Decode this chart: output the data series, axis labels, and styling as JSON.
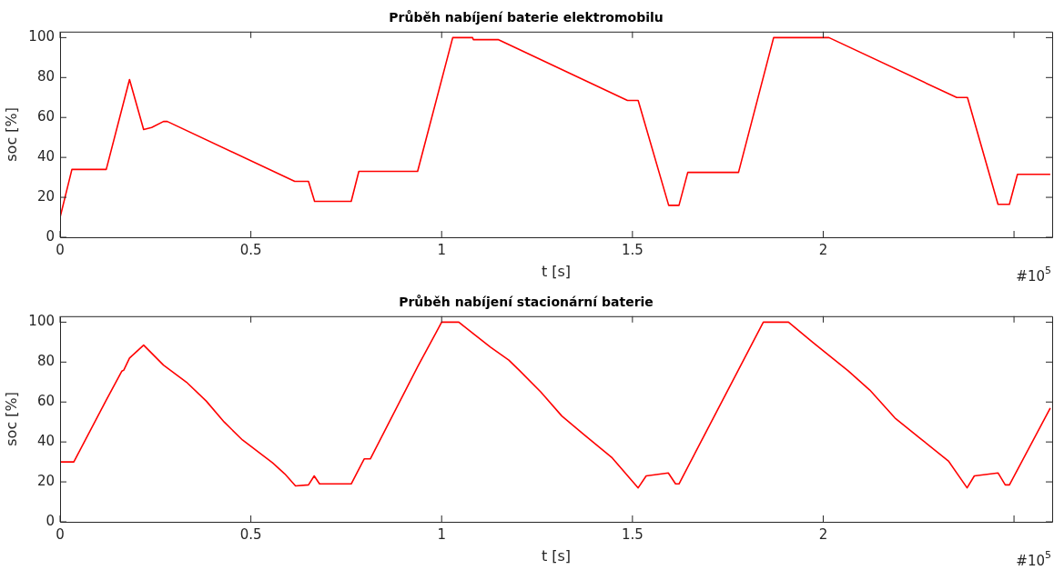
{
  "chart_data": [
    {
      "type": "line",
      "title": "Průběh nabíjení baterie elektromobilu",
      "xlabel": "t [s]",
      "ylabel": "soc [%]",
      "annotations": [
        "#10$^{5}$"
      ],
      "x": [
        0,
        0.031,
        0.121,
        0.182,
        0.219,
        0.24,
        0.271,
        0.281,
        0.615,
        0.651,
        0.667,
        0.763,
        0.783,
        0.937,
        1.029,
        1.081,
        1.083,
        1.148,
        1.487,
        1.515,
        1.595,
        1.622,
        1.645,
        1.778,
        1.87,
        2.015,
        2.35,
        2.378,
        2.458,
        2.488,
        2.509,
        2.595
      ],
      "series": [
        {
          "color": "#ff0000",
          "values": [
            10,
            34,
            34,
            79,
            54,
            55,
            58,
            58,
            28,
            28,
            18,
            18,
            33,
            33,
            100,
            100,
            99,
            99,
            68.5,
            68.5,
            16,
            16,
            32.5,
            32.5,
            100,
            100,
            70,
            70,
            16.5,
            16.5,
            31.5,
            31.5
          ]
        }
      ],
      "xlim": [
        0,
        2.6
      ],
      "xticks": [
        0,
        0.5,
        1,
        1.5,
        2,
        {
          "value": 2.5,
          "label": null
        }
      ],
      "ylim": [
        0,
        103
      ],
      "yticks": [
        0,
        20,
        40,
        60,
        80,
        100
      ],
      "legend": false
    },
    {
      "type": "line",
      "title": "Průběh nabíjení stacionární baterie",
      "xlabel": "t [s]",
      "ylabel": "soc [%]",
      "annotations": [
        "#10$^{5}$"
      ],
      "x": [
        0,
        0.036,
        0.121,
        0.162,
        0.167,
        0.182,
        0.219,
        0.271,
        0.331,
        0.383,
        0.43,
        0.478,
        0.557,
        0.589,
        0.617,
        0.651,
        0.666,
        0.68,
        0.763,
        0.797,
        0.813,
        0.938,
        0.986,
        1.0,
        1.045,
        1.081,
        1.128,
        1.176,
        1.203,
        1.26,
        1.315,
        1.371,
        1.447,
        1.515,
        1.536,
        1.594,
        1.613,
        1.622,
        1.843,
        1.909,
        1.972,
        2.066,
        2.122,
        2.188,
        2.253,
        2.328,
        2.377,
        2.396,
        2.458,
        2.477,
        2.488,
        2.595
      ],
      "series": [
        {
          "color": "#ff0000",
          "values": [
            30,
            30,
            61,
            75.5,
            76,
            82,
            88.5,
            78.5,
            70,
            60.5,
            50,
            41,
            29.5,
            24,
            18,
            18.5,
            23,
            19,
            19,
            31.5,
            31.5,
            78,
            95,
            100,
            100,
            94.5,
            87.5,
            81,
            76,
            65,
            53,
            44,
            32,
            17,
            23,
            24.5,
            19,
            19,
            100,
            100,
            90,
            75.5,
            66,
            52,
            42,
            30.5,
            17,
            23,
            24.5,
            18.5,
            18.5,
            57
          ]
        }
      ],
      "xlim": [
        0,
        2.6
      ],
      "xticks": [
        0,
        0.5,
        1,
        1.5,
        2,
        {
          "value": 2.5,
          "label": null
        }
      ],
      "ylim": [
        0,
        103
      ],
      "yticks": [
        0,
        20,
        40,
        60,
        80,
        100
      ],
      "legend": false
    }
  ]
}
